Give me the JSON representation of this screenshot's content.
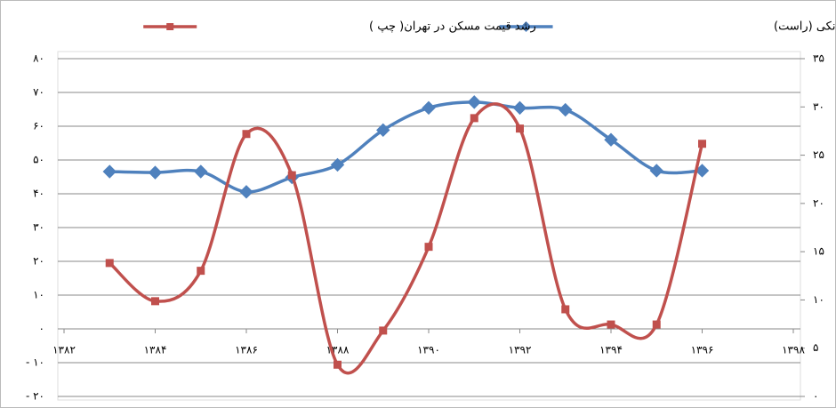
{
  "chart_data": {
    "type": "line",
    "x": [
      1383,
      1384,
      1385,
      1386,
      1387,
      1388,
      1389,
      1390,
      1391,
      1392,
      1393,
      1394,
      1395,
      1396
    ],
    "series": [
      {
        "name": "سهم بخش مسکن از تسهیلات بانکی (راست)",
        "color": "#4f81bd",
        "axis": "y2",
        "marker": "diamond",
        "values": [
          23.3,
          23.2,
          23.3,
          21.2,
          22.7,
          24.0,
          27.6,
          29.9,
          30.5,
          29.9,
          29.7,
          26.6,
          23.4,
          23.4
        ]
      },
      {
        "name": "رشد قیمت مسکن در تهران( چپ )",
        "color": "#c0504d",
        "marker": "square",
        "values": [
          19.5,
          8.2,
          17.2,
          57.7,
          45.5,
          -10.6,
          -0.5,
          24.3,
          62.4,
          59.3,
          5.8,
          1.3,
          1.3,
          54.8
        ]
      }
    ],
    "xlim": [
      1382,
      1398
    ],
    "xticks": [
      {
        "value": 1382,
        "label": "۱۳۸۲"
      },
      {
        "value": 1384,
        "label": "۱۳۸۴"
      },
      {
        "value": 1386,
        "label": "۱۳۸۶"
      },
      {
        "value": 1388,
        "label": "۱۳۸۸"
      },
      {
        "value": 1390,
        "label": "۱۳۹۰"
      },
      {
        "value": 1392,
        "label": "۱۳۹۲"
      },
      {
        "value": 1394,
        "label": "۱۳۹۴"
      },
      {
        "value": 1396,
        "label": "۱۳۹۶"
      },
      {
        "value": 1398,
        "label": "۱۳۹۸"
      }
    ],
    "ylim": [
      -20,
      80
    ],
    "yticks": [
      {
        "value": -20,
        "label": "- ۲۰"
      },
      {
        "value": -10,
        "label": "- ۱۰"
      },
      {
        "value": 0,
        "label": "۰"
      },
      {
        "value": 10,
        "label": "۱۰"
      },
      {
        "value": 20,
        "label": "۲۰"
      },
      {
        "value": 30,
        "label": "۳۰"
      },
      {
        "value": 40,
        "label": "۴۰"
      },
      {
        "value": 50,
        "label": "۵۰"
      },
      {
        "value": 60,
        "label": "۶۰"
      },
      {
        "value": 70,
        "label": "۷۰"
      },
      {
        "value": 80,
        "label": "۸۰"
      }
    ],
    "y2lim": [
      0,
      35
    ],
    "y2ticks": [
      {
        "value": 0,
        "label": "۰"
      },
      {
        "value": 5,
        "label": "۵"
      },
      {
        "value": 10,
        "label": "۱۰"
      },
      {
        "value": 15,
        "label": "۱۵"
      },
      {
        "value": 20,
        "label": "۲۰"
      },
      {
        "value": 25,
        "label": "۲۵"
      },
      {
        "value": 30,
        "label": "۳۰"
      },
      {
        "value": 35,
        "label": "۳۵"
      }
    ],
    "grid": true,
    "smooth": true
  }
}
